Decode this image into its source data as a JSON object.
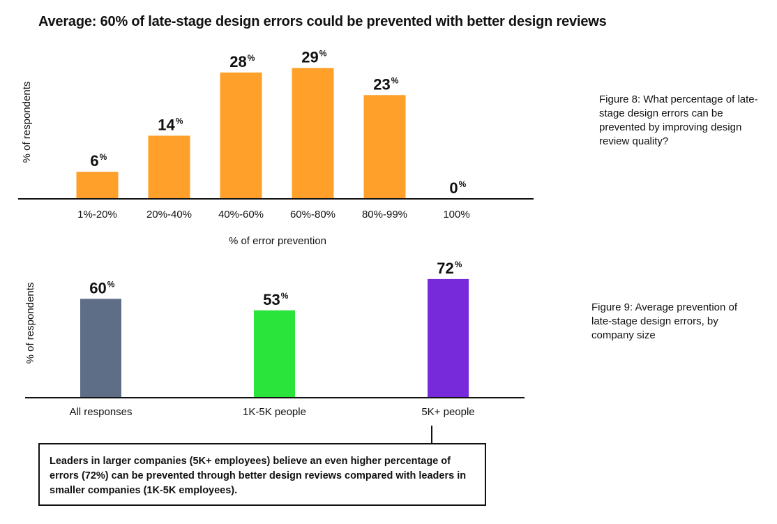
{
  "title": "Average: 60% of late-stage design errors could be prevented with better design reviews",
  "chart_data": [
    {
      "type": "bar",
      "categories": [
        "1%-20%",
        "20%-40%",
        "40%-60%",
        "60%-80%",
        "80%-99%",
        "100%"
      ],
      "values": [
        6,
        14,
        28,
        29,
        23,
        0
      ],
      "value_labels": [
        "6",
        "14",
        "28",
        "29",
        "23",
        "0"
      ],
      "value_suffix": "%",
      "xlabel": "% of error prevention",
      "ylabel": "% of respondents",
      "ylim": [
        0,
        30
      ],
      "grid": false,
      "colors": [
        "#FFA02A"
      ],
      "caption": "Figure 8: What percentage of late-stage design errors can be prevented by improving design review quality?"
    },
    {
      "type": "bar",
      "categories": [
        "All responses",
        "1K-5K people",
        "5K+ people"
      ],
      "values": [
        60,
        53,
        72
      ],
      "value_labels": [
        "60",
        "53",
        "72"
      ],
      "value_suffix": "%",
      "xlabel": "",
      "ylabel": "% of respondents",
      "ylim": [
        0,
        80
      ],
      "grid": false,
      "colors": [
        "#5F6E87",
        "#2AE43C",
        "#772AD9"
      ],
      "caption": "Figure 9: Average prevention of late-stage design errors, by company size"
    }
  ],
  "note": "Leaders in larger companies (5K+ employees) believe an even higher percentage of errors (72%) can be prevented through better design reviews compared with leaders in smaller companies (1K-5K employees)."
}
